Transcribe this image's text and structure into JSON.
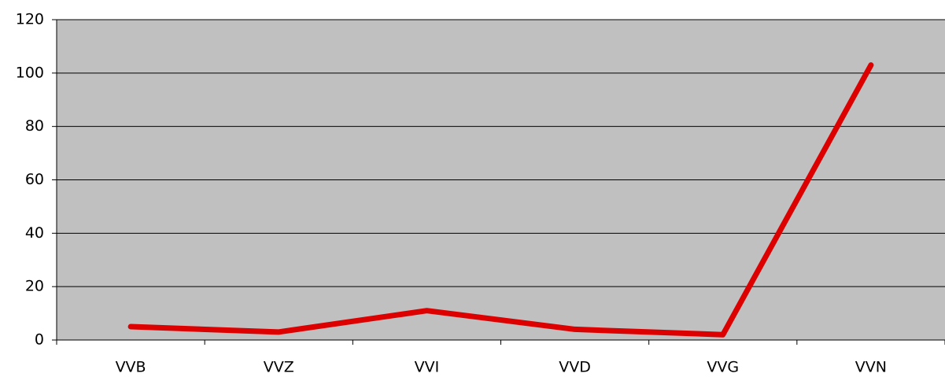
{
  "chart_data": {
    "type": "line",
    "categories": [
      "VVB",
      "VVZ",
      "VVI",
      "VVD",
      "VVG",
      "VVN"
    ],
    "values": [
      5,
      3,
      11,
      4,
      2,
      103
    ],
    "color": "#dd0000",
    "ylim": [
      0,
      120
    ],
    "yticks": [
      0,
      20,
      40,
      60,
      80,
      100,
      120
    ],
    "grid": true
  }
}
